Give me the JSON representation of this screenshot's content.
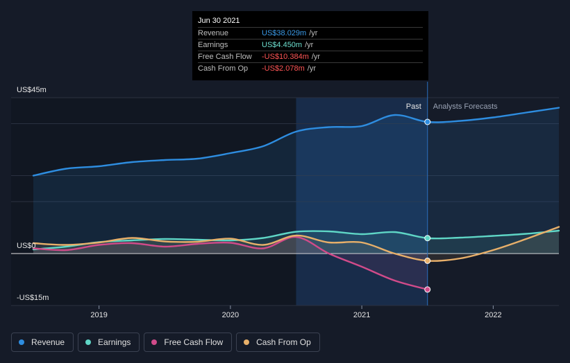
{
  "tooltip": {
    "date": "Jun 30 2021",
    "rows": [
      {
        "label": "Revenue",
        "value": "US$38.029m",
        "unit": "/yr",
        "color": "#3b9be8"
      },
      {
        "label": "Earnings",
        "value": "US$4.450m",
        "unit": "/yr",
        "color": "#6ee0d0"
      },
      {
        "label": "Free Cash Flow",
        "value": "-US$10.384m",
        "unit": "/yr",
        "color": "#ff5555"
      },
      {
        "label": "Cash From Op",
        "value": "-US$2.078m",
        "unit": "/yr",
        "color": "#ff5555"
      }
    ]
  },
  "legend": [
    {
      "label": "Revenue",
      "color": "#2e8de0"
    },
    {
      "label": "Earnings",
      "color": "#5fd6c6"
    },
    {
      "label": "Free Cash Flow",
      "color": "#d14b8a"
    },
    {
      "label": "Cash From Op",
      "color": "#e8b06a"
    }
  ],
  "chart_data": {
    "type": "line",
    "title": "",
    "ylim": [
      -15,
      45
    ],
    "xlim": [
      2018.5,
      2022.5
    ],
    "y_tick_labels": [
      "US$45m",
      "US$0",
      "-US$15m"
    ],
    "y_ticks": [
      45,
      0,
      -15
    ],
    "x_ticks": [
      2019,
      2020,
      2021,
      2022
    ],
    "x_tick_labels": [
      "2019",
      "2020",
      "2021",
      "2022"
    ],
    "past_label": "Past",
    "forecast_label": "Analysts Forecasts",
    "divider_x": 2021.5,
    "highlight_start_x": 2020.5,
    "series": [
      {
        "name": "Revenue",
        "color": "#2e8de0",
        "x": [
          2018.5,
          2018.75,
          2019.0,
          2019.25,
          2019.5,
          2019.75,
          2020.0,
          2020.25,
          2020.5,
          2020.75,
          2021.0,
          2021.25,
          2021.5,
          2021.75,
          2022.0,
          2022.25,
          2022.5
        ],
        "y": [
          22.5,
          24.5,
          25.2,
          26.4,
          27.0,
          27.4,
          29.0,
          31.0,
          35.2,
          36.5,
          36.8,
          40.0,
          38.0,
          38.3,
          39.3,
          40.7,
          42.1
        ]
      },
      {
        "name": "Earnings",
        "color": "#5fd6c6",
        "x": [
          2018.5,
          2018.75,
          2019.0,
          2019.25,
          2019.5,
          2019.75,
          2020.0,
          2020.25,
          2020.5,
          2020.75,
          2021.0,
          2021.25,
          2021.5,
          2021.75,
          2022.0,
          2022.25,
          2022.5
        ],
        "y": [
          1.2,
          2.0,
          3.3,
          3.8,
          4.2,
          4.0,
          3.8,
          4.5,
          6.3,
          6.4,
          5.6,
          6.2,
          4.45,
          4.6,
          5.1,
          5.7,
          6.6
        ]
      },
      {
        "name": "Free Cash Flow",
        "color": "#d14b8a",
        "x": [
          2018.5,
          2018.75,
          2019.0,
          2019.25,
          2019.5,
          2019.75,
          2020.0,
          2020.25,
          2020.5,
          2020.75,
          2021.0,
          2021.25,
          2021.5
        ],
        "y": [
          1.5,
          1.0,
          2.5,
          3.0,
          2.0,
          2.8,
          3.1,
          1.5,
          4.8,
          0.0,
          -3.8,
          -7.8,
          -10.384
        ]
      },
      {
        "name": "Cash From Op",
        "color": "#e8b06a",
        "x": [
          2018.5,
          2018.75,
          2019.0,
          2019.25,
          2019.5,
          2019.75,
          2020.0,
          2020.25,
          2020.5,
          2020.75,
          2021.0,
          2021.25,
          2021.5,
          2021.75,
          2022.0,
          2022.25,
          2022.5
        ],
        "y": [
          3.0,
          2.5,
          3.2,
          4.5,
          3.5,
          3.4,
          4.3,
          2.5,
          5.2,
          3.2,
          3.2,
          0.0,
          -2.078,
          -1.4,
          1.0,
          4.2,
          7.7
        ]
      }
    ]
  }
}
